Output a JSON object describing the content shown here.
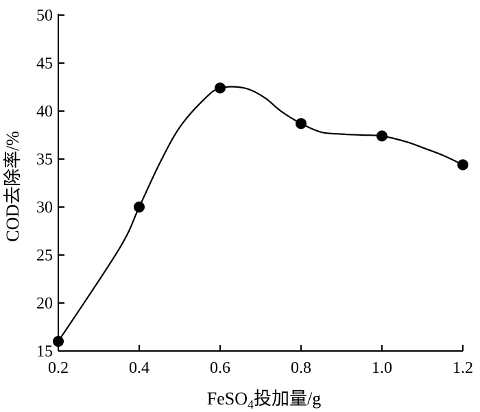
{
  "chart_data": {
    "type": "line",
    "title": "",
    "xlabel_main": "FeSO",
    "xlabel_sub": "4",
    "xlabel_tail": "投加量/g",
    "ylabel": "COD去除率/%",
    "xlim": [
      0.2,
      1.2
    ],
    "ylim": [
      15,
      50
    ],
    "x_ticks": [
      "0.2",
      "0.4",
      "0.6",
      "0.8",
      "1.0",
      "1.2"
    ],
    "y_ticks": [
      "15",
      "20",
      "25",
      "30",
      "35",
      "40",
      "45",
      "50"
    ],
    "grid": false,
    "series": [
      {
        "x": [
          0.2,
          0.4,
          0.6,
          0.8,
          1.0,
          1.2
        ],
        "values": [
          16.0,
          30.0,
          42.4,
          38.7,
          37.4,
          34.4
        ]
      }
    ],
    "curve": {
      "x": [
        0.2,
        0.35,
        0.4,
        0.45,
        0.5,
        0.56,
        0.6,
        0.66,
        0.71,
        0.75,
        0.8,
        0.85,
        0.9,
        0.95,
        1.0,
        1.06,
        1.1,
        1.15,
        1.2
      ],
      "y": [
        16.0,
        25.6,
        30.0,
        34.5,
        38.3,
        41.2,
        42.4,
        42.4,
        41.4,
        40.0,
        38.7,
        37.8,
        37.6,
        37.5,
        37.4,
        36.8,
        36.2,
        35.4,
        34.4
      ]
    }
  }
}
